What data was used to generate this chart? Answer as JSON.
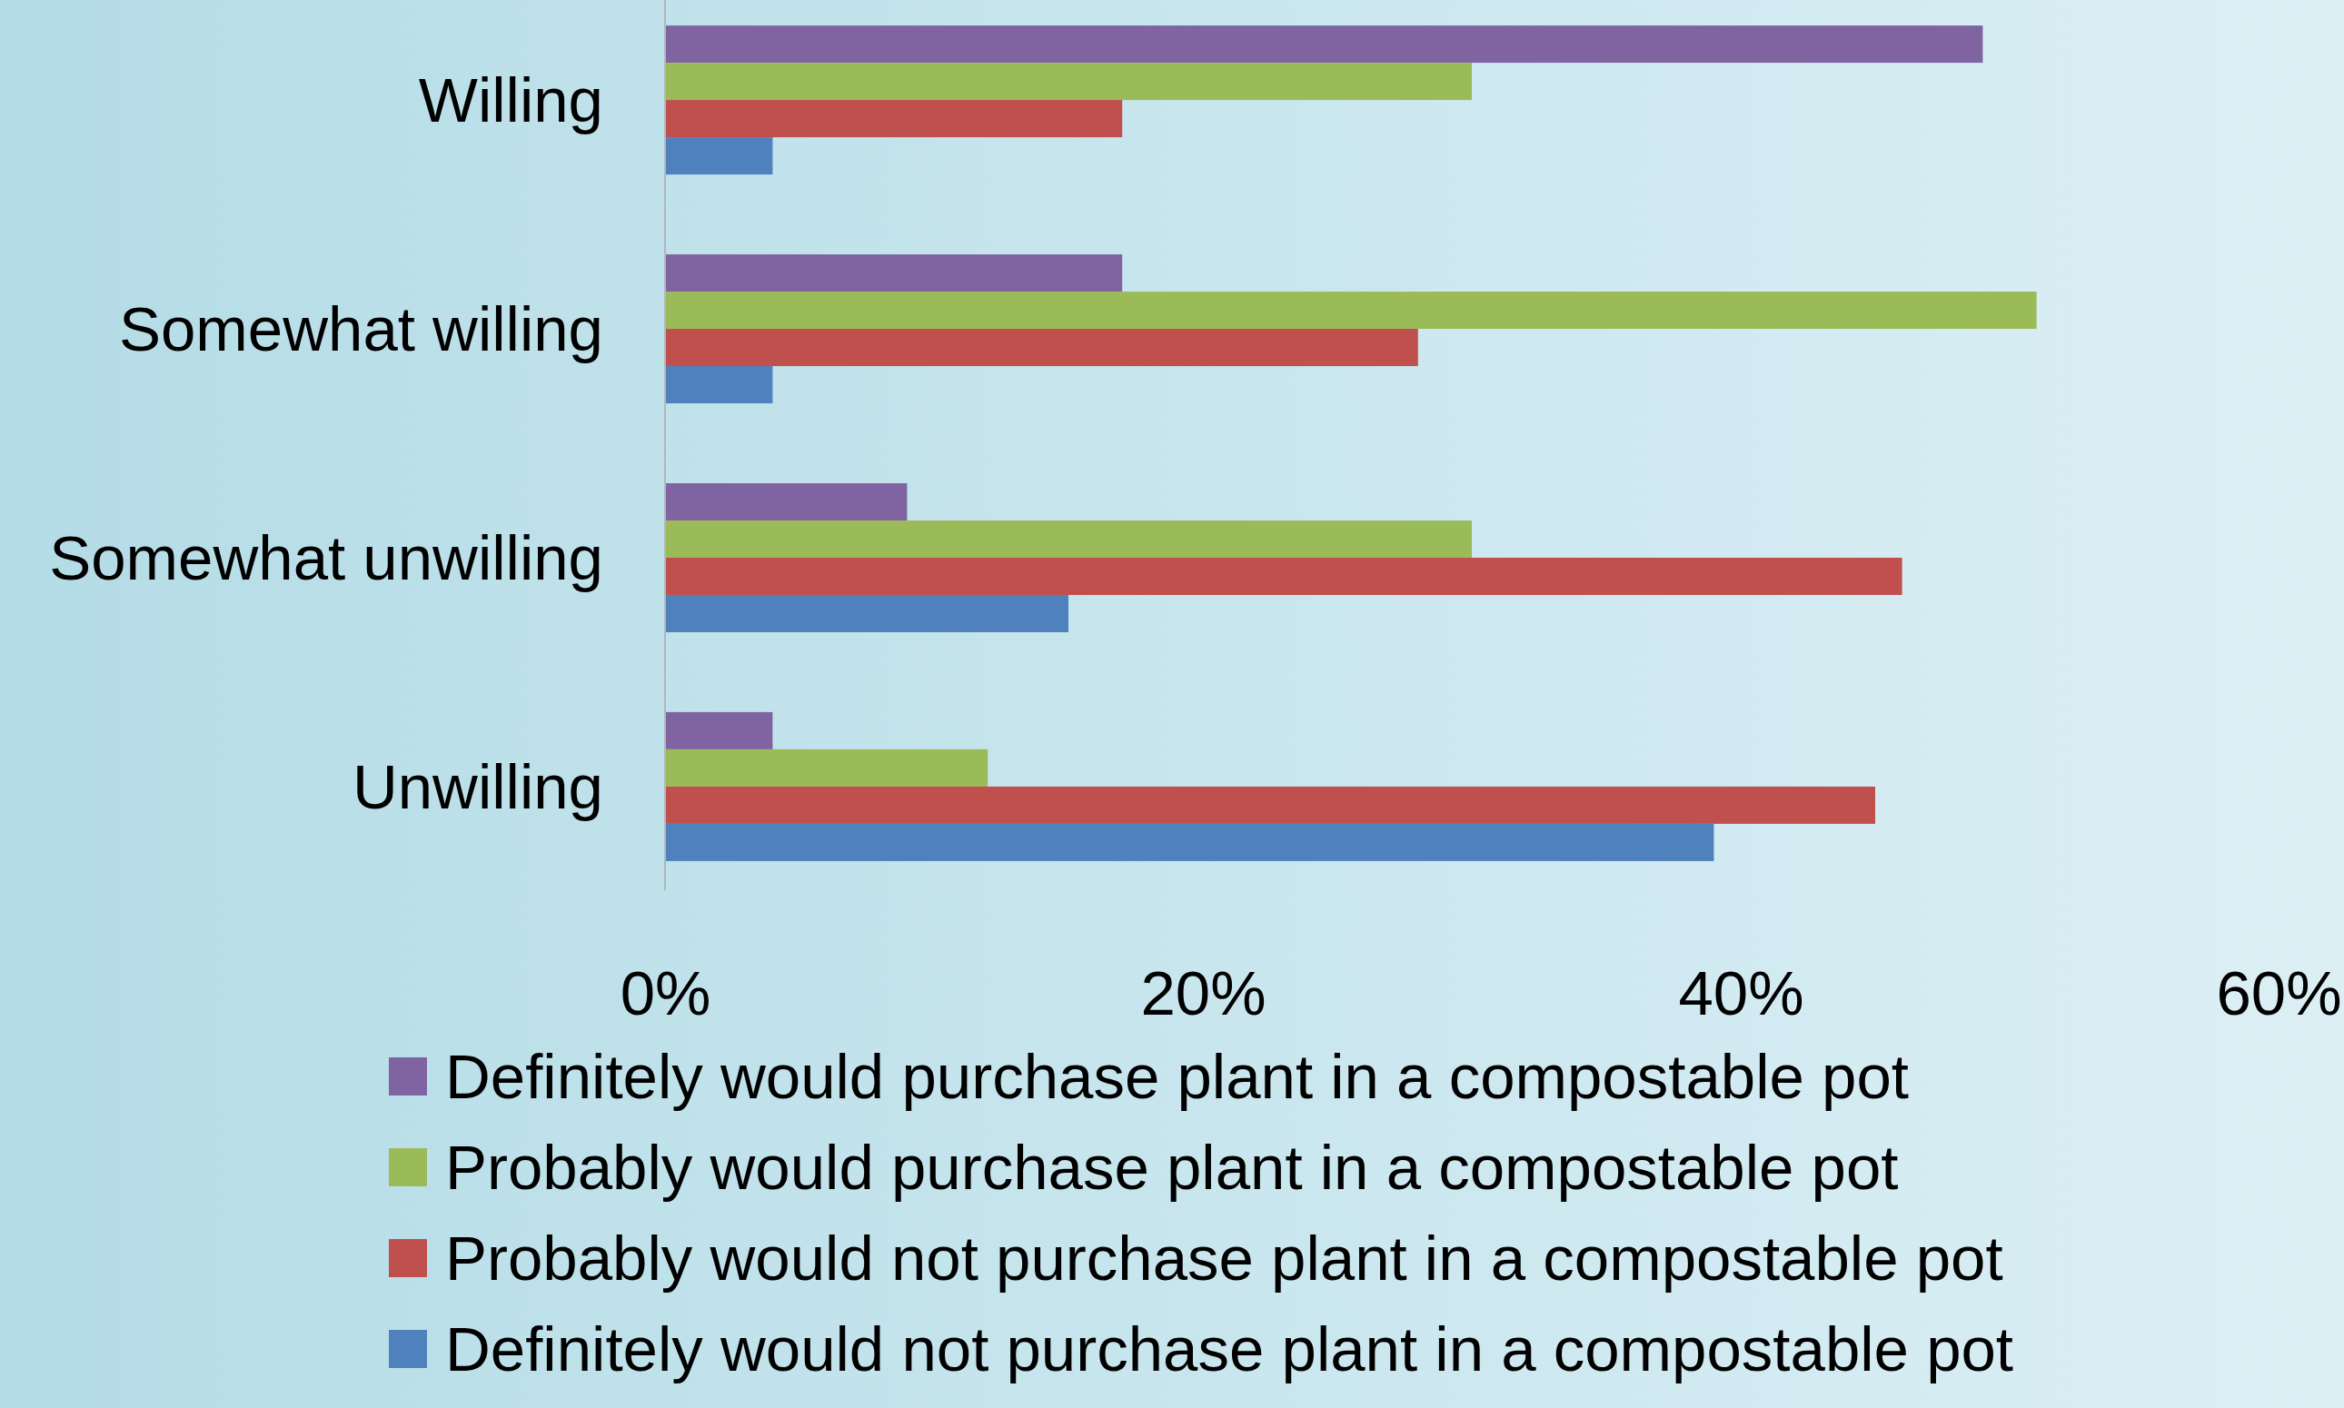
{
  "chart_data": {
    "type": "bar",
    "orientation": "horizontal",
    "categories": [
      "Willing",
      "Somewhat willing",
      "Somewhat unwilling",
      "Unwilling"
    ],
    "series": [
      {
        "name": "Definitely would purchase plant in a compostable pot",
        "color": "#8064a2",
        "values": [
          49,
          17,
          9,
          4
        ]
      },
      {
        "name": "Probably would purchase plant in a compostable pot",
        "color": "#9bbb59",
        "values": [
          30,
          51,
          30,
          12
        ]
      },
      {
        "name": "Probably would not purchase plant in a compostable pot",
        "color": "#c0504d",
        "values": [
          17,
          28,
          46,
          45
        ]
      },
      {
        "name": "Definitely would not purchase plant in a compostable pot",
        "color": "#4f81bd",
        "values": [
          4,
          4,
          15,
          39
        ]
      }
    ],
    "xlim": [
      0,
      60
    ],
    "xticks": [
      {
        "value": 0,
        "label": "0%"
      },
      {
        "value": 20,
        "label": "20%"
      },
      {
        "value": 40,
        "label": "40%"
      },
      {
        "value": 60,
        "label": "60%"
      }
    ],
    "grid": false,
    "legend": "bottom"
  }
}
